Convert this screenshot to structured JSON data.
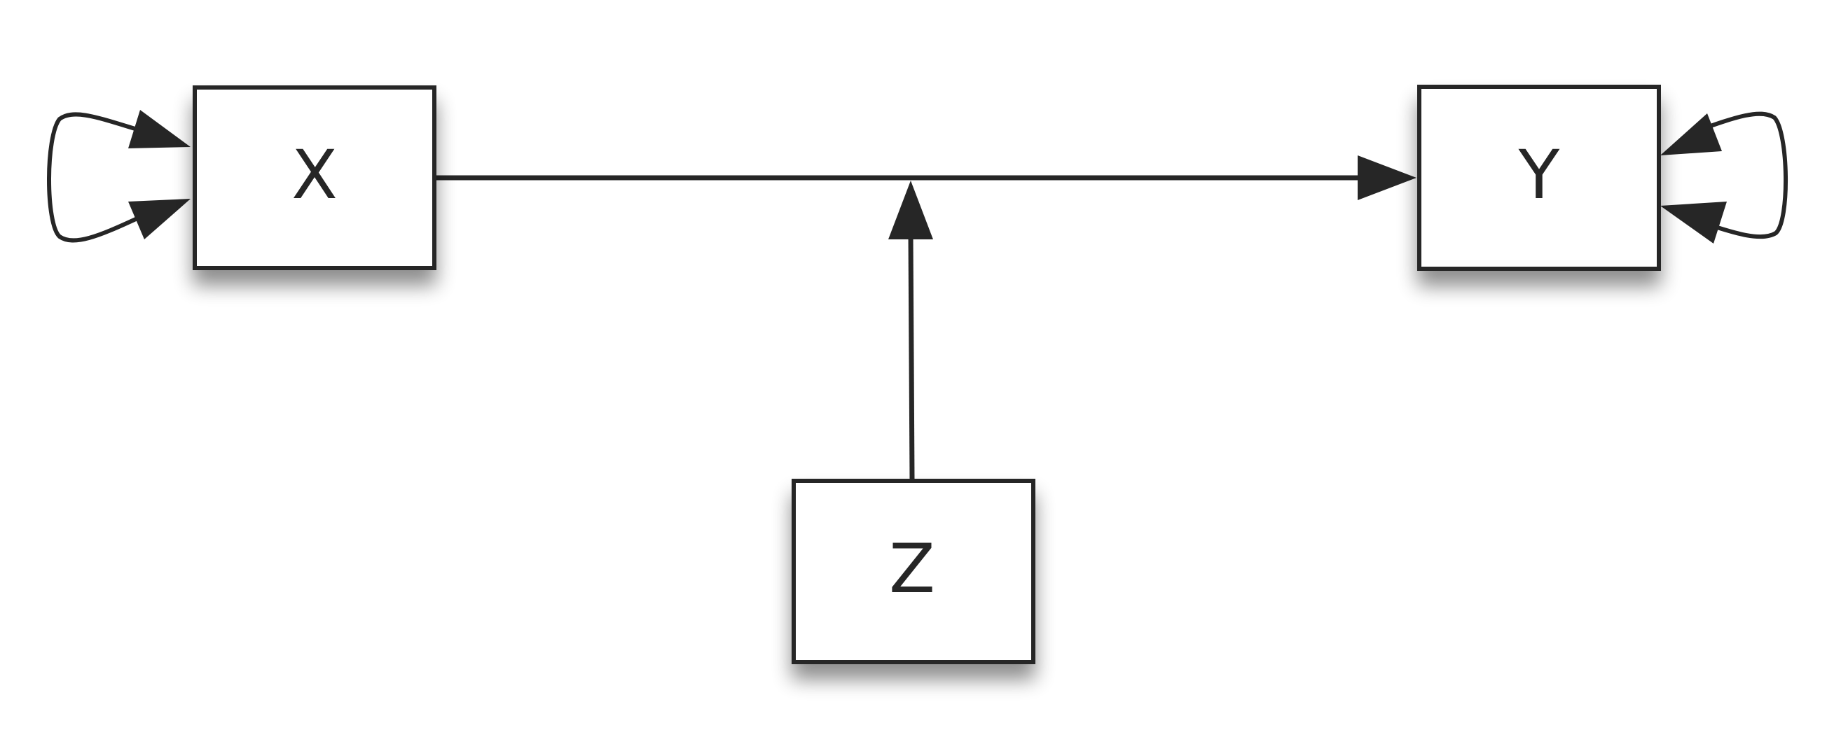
{
  "colors": {
    "stroke": "#262626",
    "node_fill": "#ffffff",
    "background": "#ffffff"
  },
  "nodes": {
    "x": {
      "label": "X"
    },
    "y": {
      "label": "Y"
    },
    "z": {
      "label": "Z"
    }
  },
  "edges": [
    {
      "from": "X",
      "to": "Y"
    },
    {
      "from": "Z",
      "to": "X→Y edge"
    },
    {
      "from": "X",
      "to": "X",
      "kind": "self-loop"
    },
    {
      "from": "Y",
      "to": "Y",
      "kind": "self-loop"
    }
  ]
}
